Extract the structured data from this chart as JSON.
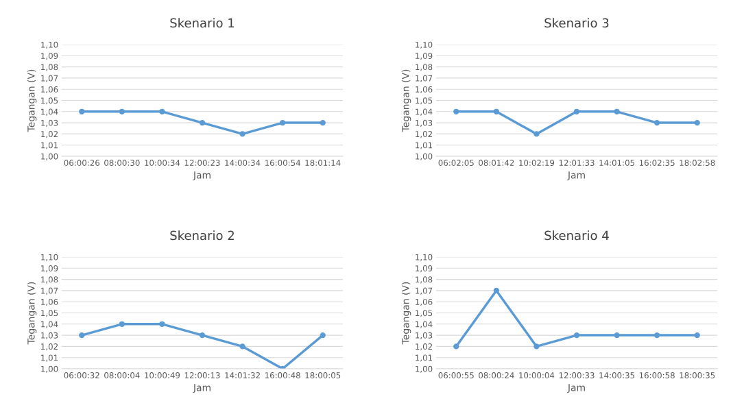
{
  "chart_data": [
    {
      "type": "line",
      "title": "Skenario 1",
      "xlabel": "Jam",
      "ylabel": "Tegangan (V)",
      "categories": [
        "06:00:26",
        "08:00:30",
        "10:00:34",
        "12:00:23",
        "14:00:34",
        "16:00:54",
        "18:01:14"
      ],
      "series": [
        {
          "color": "#5b9bd5",
          "values": [
            1.04,
            1.04,
            1.04,
            1.03,
            1.02,
            1.03,
            1.03
          ]
        }
      ],
      "ylim": [
        1.0,
        1.1
      ],
      "yticks": [
        {
          "value": 1.0,
          "label": "1,00"
        },
        {
          "value": 1.01,
          "label": "1,01"
        },
        {
          "value": 1.02,
          "label": "1,02"
        },
        {
          "value": 1.03,
          "label": "1,03"
        },
        {
          "value": 1.04,
          "label": "1,04"
        },
        {
          "value": 1.05,
          "label": "1,05"
        },
        {
          "value": 1.06,
          "label": "1,06"
        },
        {
          "value": 1.07,
          "label": "1,07"
        },
        {
          "value": 1.08,
          "label": "1,08"
        },
        {
          "value": 1.09,
          "label": "1,09"
        },
        {
          "value": 1.1,
          "label": "1,10"
        }
      ],
      "grid": "y",
      "marker": "circle",
      "line_style": "solid"
    },
    {
      "type": "line",
      "title": "Skenario 3",
      "xlabel": "Jam",
      "ylabel": "Tegangan (V)",
      "categories": [
        "06:02:05",
        "08:01:42",
        "10:02:19",
        "12:01:33",
        "14:01:05",
        "16:02:35",
        "18:02:58"
      ],
      "series": [
        {
          "color": "#5b9bd5",
          "values": [
            1.04,
            1.04,
            1.02,
            1.04,
            1.04,
            1.03,
            1.03
          ]
        }
      ],
      "ylim": [
        1.0,
        1.1
      ],
      "yticks": [
        {
          "value": 1.0,
          "label": "1,00"
        },
        {
          "value": 1.01,
          "label": "1,01"
        },
        {
          "value": 1.02,
          "label": "1,02"
        },
        {
          "value": 1.03,
          "label": "1,03"
        },
        {
          "value": 1.04,
          "label": "1,04"
        },
        {
          "value": 1.05,
          "label": "1,05"
        },
        {
          "value": 1.06,
          "label": "1,06"
        },
        {
          "value": 1.07,
          "label": "1,07"
        },
        {
          "value": 1.08,
          "label": "1,08"
        },
        {
          "value": 1.09,
          "label": "1,09"
        },
        {
          "value": 1.1,
          "label": "1,10"
        }
      ],
      "grid": "y",
      "marker": "circle",
      "line_style": "solid"
    },
    {
      "type": "line",
      "title": "Skenario 2",
      "xlabel": "Jam",
      "ylabel": "Tegangan (V)",
      "categories": [
        "06:00:32",
        "08:00:04",
        "10:00:49",
        "12:00:13",
        "14:01:32",
        "16:00:48",
        "18:00:05"
      ],
      "series": [
        {
          "color": "#5b9bd5",
          "values": [
            1.03,
            1.04,
            1.04,
            1.03,
            1.02,
            1.0,
            1.03
          ]
        }
      ],
      "ylim": [
        1.0,
        1.1
      ],
      "yticks": [
        {
          "value": 1.0,
          "label": "1,00"
        },
        {
          "value": 1.01,
          "label": "1,01"
        },
        {
          "value": 1.02,
          "label": "1,02"
        },
        {
          "value": 1.03,
          "label": "1,03"
        },
        {
          "value": 1.04,
          "label": "1,04"
        },
        {
          "value": 1.05,
          "label": "1,05"
        },
        {
          "value": 1.06,
          "label": "1,06"
        },
        {
          "value": 1.07,
          "label": "1,07"
        },
        {
          "value": 1.08,
          "label": "1,08"
        },
        {
          "value": 1.09,
          "label": "1,09"
        },
        {
          "value": 1.1,
          "label": "1,10"
        }
      ],
      "grid": "y",
      "marker": "circle",
      "line_style": "solid"
    },
    {
      "type": "line",
      "title": "Skenario 4",
      "xlabel": "Jam",
      "ylabel": "Tegangan (V)",
      "categories": [
        "06:00:55",
        "08:00:24",
        "10:00:04",
        "12:00:33",
        "14:00:35",
        "16:00:58",
        "18:00:35"
      ],
      "series": [
        {
          "color": "#5b9bd5",
          "values": [
            1.02,
            1.07,
            1.02,
            1.03,
            1.03,
            1.03,
            1.03
          ]
        }
      ],
      "ylim": [
        1.0,
        1.1
      ],
      "yticks": [
        {
          "value": 1.0,
          "label": "1,00"
        },
        {
          "value": 1.01,
          "label": "1,01"
        },
        {
          "value": 1.02,
          "label": "1,02"
        },
        {
          "value": 1.03,
          "label": "1,03"
        },
        {
          "value": 1.04,
          "label": "1,04"
        },
        {
          "value": 1.05,
          "label": "1,05"
        },
        {
          "value": 1.06,
          "label": "1,06"
        },
        {
          "value": 1.07,
          "label": "1,07"
        },
        {
          "value": 1.08,
          "label": "1,08"
        },
        {
          "value": 1.09,
          "label": "1,09"
        },
        {
          "value": 1.1,
          "label": "1,10"
        }
      ],
      "grid": "y",
      "marker": "circle",
      "line_style": "solid"
    }
  ]
}
